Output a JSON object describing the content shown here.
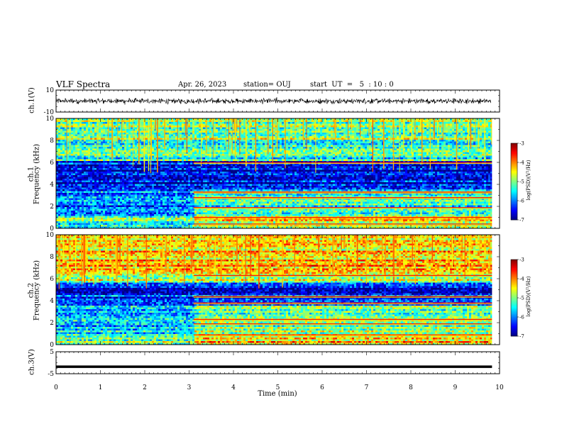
{
  "header": {
    "title": "VLF Spectra",
    "date": "Apr. 26, 2023",
    "station": "station= OUJ",
    "start": "start  UT  =   5  : 10 : 0"
  },
  "colors": {
    "waveform": "#000000",
    "colormap": [
      "#00007f",
      "#0000ff",
      "#0080ff",
      "#00ffff",
      "#80ff80",
      "#ffff00",
      "#ff8000",
      "#ff0000",
      "#7f0000"
    ]
  },
  "chart_data": [
    {
      "type": "line",
      "name": "ch1-waveform",
      "ylabel": "ch.1(V)",
      "ylim": [
        -10,
        10
      ],
      "yticks": [
        "10",
        "-10"
      ],
      "xlim": [
        0,
        10
      ],
      "level": 0,
      "amplitude": 1.2
    },
    {
      "type": "heatmap",
      "name": "ch1-spectrogram",
      "ylabel_top": "ch.1",
      "ylabel": "Frequency (kHz)",
      "ylim": [
        0,
        10
      ],
      "yticks": [
        "0",
        "2",
        "4",
        "6",
        "8",
        "10"
      ],
      "xlim": [
        0,
        9.83
      ],
      "transition_min": 3.1,
      "colorbar_label": "log(PSD)(V²/Hz)",
      "colorbar_ticks": [
        "-3",
        "-4",
        "-5",
        "-6",
        "-7"
      ],
      "colorbar_range": [
        -7,
        -3
      ],
      "background_bands_khz": [
        {
          "from": 0,
          "to": 1,
          "level": -5.2
        },
        {
          "from": 1,
          "to": 2,
          "level": -5.8
        },
        {
          "from": 2,
          "to": 3.5,
          "level": -6.0
        },
        {
          "from": 3.5,
          "to": 5.5,
          "level": -6.6
        },
        {
          "from": 5.5,
          "to": 6.2,
          "level": -6.4
        },
        {
          "from": 6.2,
          "to": 8,
          "level": -5.4
        },
        {
          "from": 8,
          "to": 10,
          "level": -5.0
        }
      ],
      "after_transition_lines_khz": [
        0.4,
        1.0,
        1.9,
        2.8,
        3.3,
        6.0
      ]
    },
    {
      "type": "heatmap",
      "name": "ch2-spectrogram",
      "ylabel_top": "ch.2",
      "ylabel": "Frequency (kHz)",
      "ylim": [
        0,
        10
      ],
      "yticks": [
        "0",
        "2",
        "4",
        "6",
        "8",
        "10"
      ],
      "xlim": [
        0,
        9.83
      ],
      "transition_min": 3.1,
      "colorbar_label": "log(PSD)(V²/Hz)",
      "colorbar_ticks": [
        "-3",
        "-4",
        "-5",
        "-6",
        "-7"
      ],
      "colorbar_range": [
        -7,
        -3
      ],
      "background_bands_khz": [
        {
          "from": 0,
          "to": 1,
          "level": -5.0
        },
        {
          "from": 1,
          "to": 2,
          "level": -5.6
        },
        {
          "from": 2,
          "to": 3.5,
          "level": -5.8
        },
        {
          "from": 3.5,
          "to": 5.6,
          "level": -6.3
        },
        {
          "from": 5.6,
          "to": 6.8,
          "level": -4.6
        },
        {
          "from": 6.8,
          "to": 10,
          "level": -4.3
        }
      ],
      "after_transition_lines_khz": [
        0.9,
        1.9,
        2.3,
        3.8,
        4.4,
        6.3
      ]
    },
    {
      "type": "line",
      "name": "ch3-waveform",
      "ylabel": "ch.3(V)",
      "ylim": [
        -5,
        5
      ],
      "yticks": [
        "5",
        "-5"
      ],
      "xlim": [
        0,
        9.83
      ],
      "level": -1.8
    }
  ],
  "xaxis": {
    "label": "Time (min)",
    "ticks": [
      "0",
      "1",
      "2",
      "3",
      "4",
      "5",
      "6",
      "7",
      "8",
      "9",
      "10"
    ],
    "range": [
      0,
      10
    ]
  }
}
